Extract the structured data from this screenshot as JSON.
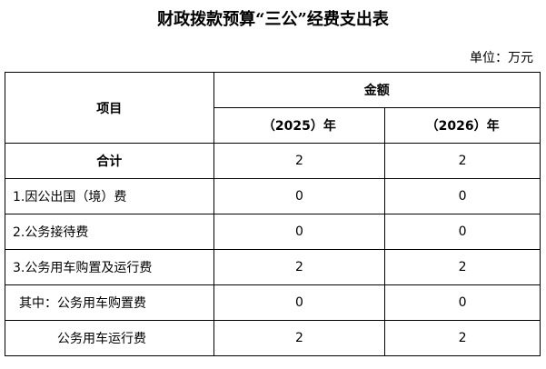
{
  "title": "财政拨款预算“三公”经费支出表",
  "unit": "单位：万元",
  "header": {
    "item": "项目",
    "amount": "金额",
    "years": [
      "（2025）年",
      "（2026）年"
    ]
  },
  "rows": [
    {
      "label": "合计",
      "v2025": "2",
      "v2026": "2"
    },
    {
      "label": "1.因公出国（境）费",
      "v2025": "0",
      "v2026": "0"
    },
    {
      "label": "2.公务接待费",
      "v2025": "0",
      "v2026": "0"
    },
    {
      "label": "3.公务用车购置及运行费",
      "v2025": "2",
      "v2026": "2"
    },
    {
      "label": "其中：公务用车购置费",
      "v2025": "0",
      "v2026": "0"
    },
    {
      "label": "公务用车运行费",
      "v2025": "2",
      "v2026": "2"
    }
  ]
}
